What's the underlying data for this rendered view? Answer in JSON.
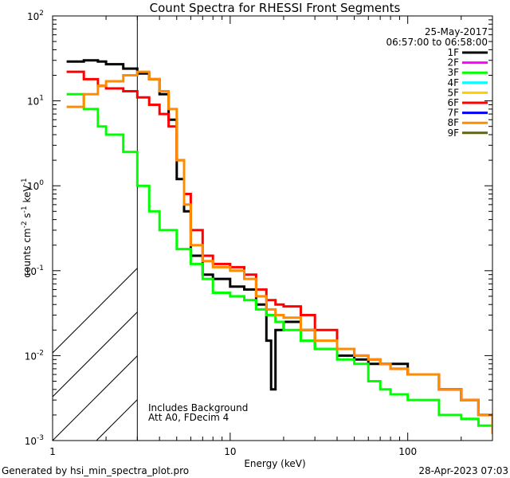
{
  "chart_data": {
    "type": "line",
    "title": "Count Spectra for RHESSI Front Segments",
    "xlabel": "Energy (keV)",
    "ylabel": "counts cm-2 s-1 keV-1",
    "xscale": "log",
    "yscale": "log",
    "xlim": [
      1.0,
      300
    ],
    "ylim": [
      0.001,
      100
    ],
    "x_ticks": [
      "1",
      "10",
      "100"
    ],
    "y_ticks": [
      "10",
      "10",
      "10",
      "10",
      "10",
      "10"
    ],
    "y_tick_exponents": [
      "-3",
      "-2",
      "-1",
      "0",
      "1",
      "2"
    ],
    "date": "25-May-2017",
    "time_range": "06:57:00 to 06:58:00",
    "legend": [
      {
        "name": "1F",
        "color": "#000000"
      },
      {
        "name": "2F",
        "color": "#ff00ff"
      },
      {
        "name": "3F",
        "color": "#00ff00"
      },
      {
        "name": "4F",
        "color": "#00ffff"
      },
      {
        "name": "5F",
        "color": "#ffcc00"
      },
      {
        "name": "6F",
        "color": "#ff0000"
      },
      {
        "name": "7F",
        "color": "#0000ff"
      },
      {
        "name": "8F",
        "color": "#ff8c00"
      },
      {
        "name": "9F",
        "color": "#666600"
      }
    ],
    "annotations": [
      "Includes Background",
      "Att A0, FDecim 4"
    ],
    "hatched_region_kev": [
      1.0,
      3.0
    ],
    "series": [
      {
        "name": "1F",
        "color": "#000000",
        "points": [
          [
            1.2,
            29
          ],
          [
            1.5,
            30
          ],
          [
            1.8,
            29
          ],
          [
            2.0,
            27
          ],
          [
            2.5,
            24
          ],
          [
            3.0,
            21
          ],
          [
            3.5,
            18
          ],
          [
            4.0,
            12
          ],
          [
            4.5,
            6
          ],
          [
            5.0,
            1.2
          ],
          [
            5.5,
            0.5
          ],
          [
            6.0,
            0.15
          ],
          [
            7.0,
            0.09
          ],
          [
            8.0,
            0.08
          ],
          [
            10,
            0.065
          ],
          [
            12,
            0.06
          ],
          [
            14,
            0.04
          ],
          [
            16,
            0.015
          ],
          [
            17,
            0.004
          ],
          [
            18,
            0.02
          ],
          [
            20,
            0.025
          ],
          [
            25,
            0.02
          ],
          [
            30,
            0.012
          ],
          [
            40,
            0.01
          ],
          [
            50,
            0.009
          ],
          [
            60,
            0.008
          ],
          [
            70,
            0.008
          ],
          [
            80,
            0.008
          ],
          [
            100,
            0.006
          ],
          [
            150,
            0.004
          ],
          [
            200,
            0.003
          ],
          [
            250,
            0.002
          ],
          [
            300,
            0.0013
          ]
        ]
      },
      {
        "name": "3F",
        "color": "#00ff00",
        "points": [
          [
            1.2,
            12
          ],
          [
            1.5,
            8
          ],
          [
            1.8,
            5
          ],
          [
            2.0,
            4
          ],
          [
            2.5,
            2.5
          ],
          [
            3.0,
            1.0
          ],
          [
            3.5,
            0.5
          ],
          [
            4.0,
            0.3
          ],
          [
            5.0,
            0.18
          ],
          [
            6.0,
            0.12
          ],
          [
            7.0,
            0.08
          ],
          [
            8.0,
            0.055
          ],
          [
            10,
            0.05
          ],
          [
            12,
            0.045
          ],
          [
            14,
            0.035
          ],
          [
            16,
            0.03
          ],
          [
            18,
            0.025
          ],
          [
            20,
            0.02
          ],
          [
            25,
            0.015
          ],
          [
            30,
            0.012
          ],
          [
            40,
            0.009
          ],
          [
            50,
            0.008
          ],
          [
            60,
            0.005
          ],
          [
            70,
            0.004
          ],
          [
            80,
            0.0035
          ],
          [
            100,
            0.003
          ],
          [
            150,
            0.002
          ],
          [
            200,
            0.0018
          ],
          [
            250,
            0.0015
          ],
          [
            300,
            0.0012
          ]
        ]
      },
      {
        "name": "6F",
        "color": "#ff0000",
        "points": [
          [
            1.2,
            22
          ],
          [
            1.5,
            18
          ],
          [
            1.8,
            15
          ],
          [
            2.0,
            14
          ],
          [
            2.5,
            13
          ],
          [
            3.0,
            11
          ],
          [
            3.5,
            9
          ],
          [
            4.0,
            7
          ],
          [
            4.5,
            5
          ],
          [
            5.0,
            2
          ],
          [
            5.5,
            0.8
          ],
          [
            6.0,
            0.3
          ],
          [
            7.0,
            0.15
          ],
          [
            8.0,
            0.12
          ],
          [
            10,
            0.11
          ],
          [
            12,
            0.09
          ],
          [
            14,
            0.06
          ],
          [
            16,
            0.045
          ],
          [
            18,
            0.04
          ],
          [
            20,
            0.038
          ],
          [
            25,
            0.03
          ],
          [
            30,
            0.02
          ],
          [
            40,
            0.012
          ],
          [
            50,
            0.01
          ],
          [
            60,
            0.009
          ],
          [
            70,
            0.008
          ],
          [
            80,
            0.007
          ],
          [
            100,
            0.006
          ],
          [
            150,
            0.004
          ],
          [
            200,
            0.003
          ],
          [
            250,
            0.002
          ],
          [
            300,
            0.0012
          ]
        ]
      },
      {
        "name": "8F",
        "color": "#ff8c00",
        "points": [
          [
            1.2,
            8.5
          ],
          [
            1.5,
            12
          ],
          [
            1.8,
            15
          ],
          [
            2.0,
            17
          ],
          [
            2.5,
            20
          ],
          [
            3.0,
            22
          ],
          [
            3.5,
            18
          ],
          [
            4.0,
            13
          ],
          [
            4.5,
            8
          ],
          [
            5.0,
            2
          ],
          [
            5.5,
            0.6
          ],
          [
            6.0,
            0.2
          ],
          [
            7.0,
            0.13
          ],
          [
            8.0,
            0.11
          ],
          [
            10,
            0.1
          ],
          [
            12,
            0.08
          ],
          [
            14,
            0.05
          ],
          [
            16,
            0.035
          ],
          [
            18,
            0.03
          ],
          [
            20,
            0.028
          ],
          [
            25,
            0.02
          ],
          [
            30,
            0.015
          ],
          [
            40,
            0.012
          ],
          [
            50,
            0.01
          ],
          [
            60,
            0.009
          ],
          [
            70,
            0.008
          ],
          [
            80,
            0.007
          ],
          [
            100,
            0.006
          ],
          [
            150,
            0.004
          ],
          [
            200,
            0.003
          ],
          [
            250,
            0.002
          ],
          [
            300,
            0.0012
          ]
        ]
      }
    ]
  },
  "footer": {
    "generated_by": "Generated by hsi_min_spectra_plot.pro",
    "generated_on": "28-Apr-2023 07:03"
  }
}
